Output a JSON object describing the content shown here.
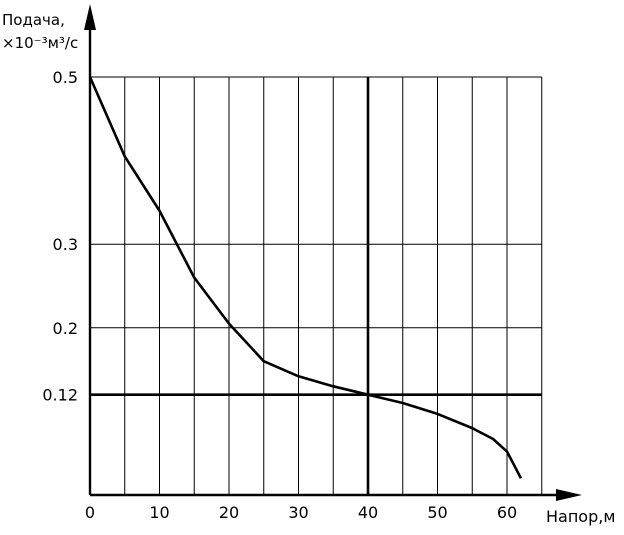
{
  "chart_data": {
    "type": "line",
    "ylabel_line1": "Подача,",
    "ylabel_line2": "×10⁻³м³/с",
    "xlabel": "Напор,м",
    "xlim": [
      0,
      65
    ],
    "ylim": [
      0,
      0.5
    ],
    "x_ticks": [
      0,
      10,
      20,
      30,
      40,
      50,
      60
    ],
    "x_tick_labels": [
      "0",
      "10",
      "20",
      "30",
      "40",
      "50",
      "60"
    ],
    "y_ticks": [
      0.5,
      0.3,
      0.2,
      0.12
    ],
    "y_tick_labels": [
      "0.5",
      "0.3",
      "0.2",
      "0.12"
    ],
    "x_grid_step": 5,
    "grid": true,
    "reference_lines": {
      "x": 40,
      "y": 0.12
    },
    "series": [
      {
        "x": [
          0,
          5,
          10,
          15,
          20,
          25,
          30,
          35,
          40,
          45,
          50,
          55,
          58,
          60,
          62
        ],
        "values": [
          0.5,
          0.405,
          0.34,
          0.26,
          0.205,
          0.16,
          0.142,
          0.13,
          0.12,
          0.11,
          0.097,
          0.08,
          0.067,
          0.052,
          0.02
        ]
      }
    ]
  }
}
